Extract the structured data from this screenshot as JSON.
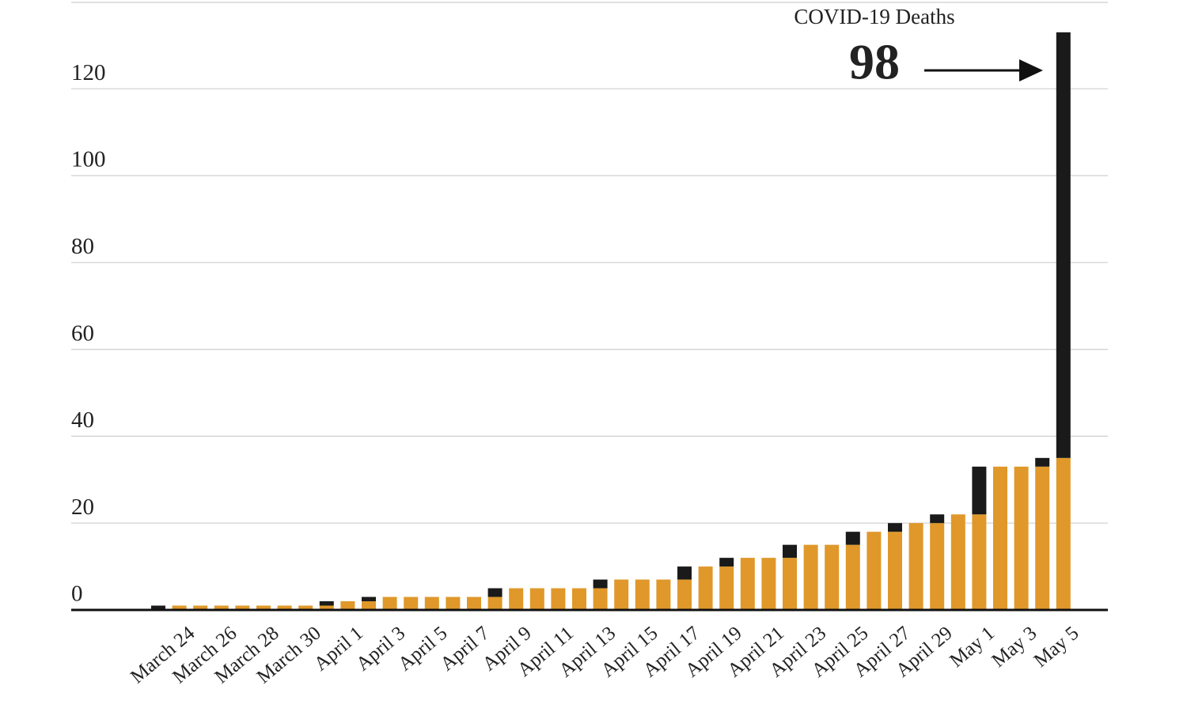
{
  "chart_data": {
    "type": "stacked_bar",
    "annotation": "COVID-19 Deaths",
    "categories": [
      null,
      "March 24",
      null,
      "March 26",
      null,
      "March 28",
      null,
      "March 30",
      null,
      "April 1",
      null,
      "April 3",
      null,
      "April 5",
      null,
      "April 7",
      null,
      "April 9",
      null,
      "April 11",
      null,
      "April 13",
      null,
      "April 15",
      null,
      "April 17",
      null,
      "April 19",
      null,
      "April 21",
      null,
      "April 23",
      null,
      "April 25",
      null,
      "April 27",
      null,
      "April 29",
      null,
      "May 1",
      null,
      "May 3",
      null,
      "May 5"
    ],
    "series": [
      {
        "color": "#e0982a",
        "values": [
          0,
          1,
          1,
          1,
          1,
          1,
          1,
          1,
          1,
          2,
          2,
          3,
          3,
          3,
          3,
          3,
          3,
          5,
          5,
          5,
          5,
          5,
          7,
          7,
          7,
          7,
          10,
          10,
          12,
          12,
          12,
          15,
          15,
          15,
          18,
          18,
          20,
          20,
          22,
          22,
          33,
          33,
          33,
          35
        ]
      },
      {
        "color": "#1a1a1a",
        "values": [
          1,
          0,
          0,
          0,
          0,
          0,
          0,
          0,
          1,
          0,
          1,
          0,
          0,
          0,
          0,
          0,
          2,
          0,
          0,
          0,
          0,
          2,
          0,
          0,
          0,
          3,
          0,
          2,
          0,
          0,
          3,
          0,
          0,
          3,
          0,
          2,
          0,
          2,
          0,
          11,
          0,
          0,
          2,
          98
        ]
      }
    ],
    "ylim": [
      0,
      140
    ],
    "yticks": [
      0,
      20,
      40,
      60,
      80,
      100,
      120
    ],
    "grid": true
  }
}
